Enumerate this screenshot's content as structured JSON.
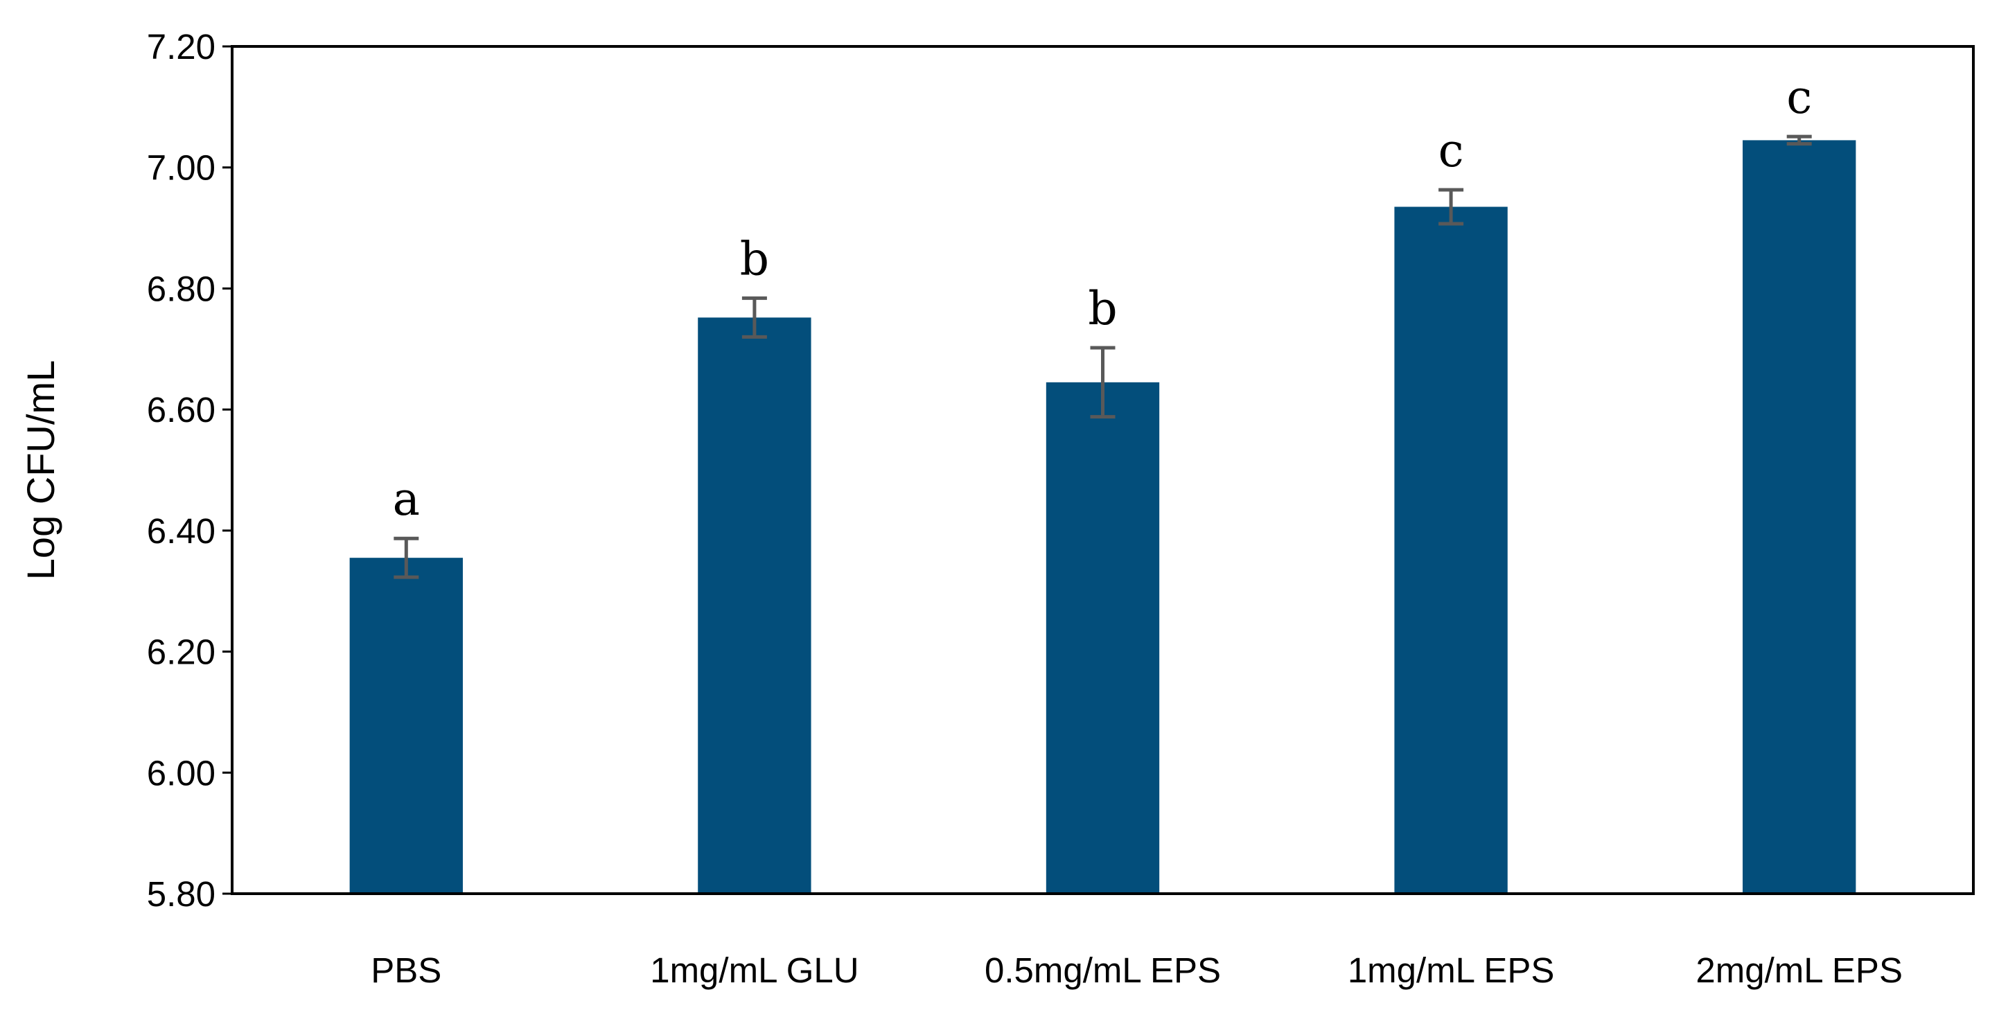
{
  "chart_data": {
    "type": "bar",
    "title": "",
    "xlabel": "",
    "ylabel": "Log CFU/mL",
    "ylim": [
      5.8,
      7.2
    ],
    "yticks": [
      "5.80",
      "6.00",
      "6.20",
      "6.40",
      "6.60",
      "6.80",
      "7.00",
      "7.20"
    ],
    "categories": [
      "PBS",
      "1mg/mL GLU",
      "0.5mg/mL EPS",
      "1mg/mL EPS",
      "2mg/mL EPS"
    ],
    "values": [
      6.355,
      6.752,
      6.645,
      6.935,
      7.045
    ],
    "errors": [
      0.032,
      0.032,
      0.057,
      0.028,
      0.006
    ],
    "significance_labels": [
      "a",
      "b",
      "b",
      "c",
      "c"
    ],
    "grid": false,
    "legend": "none",
    "colors": {
      "bar": "#034e7b",
      "error_bar": "#595959",
      "axis": "#000000"
    }
  }
}
